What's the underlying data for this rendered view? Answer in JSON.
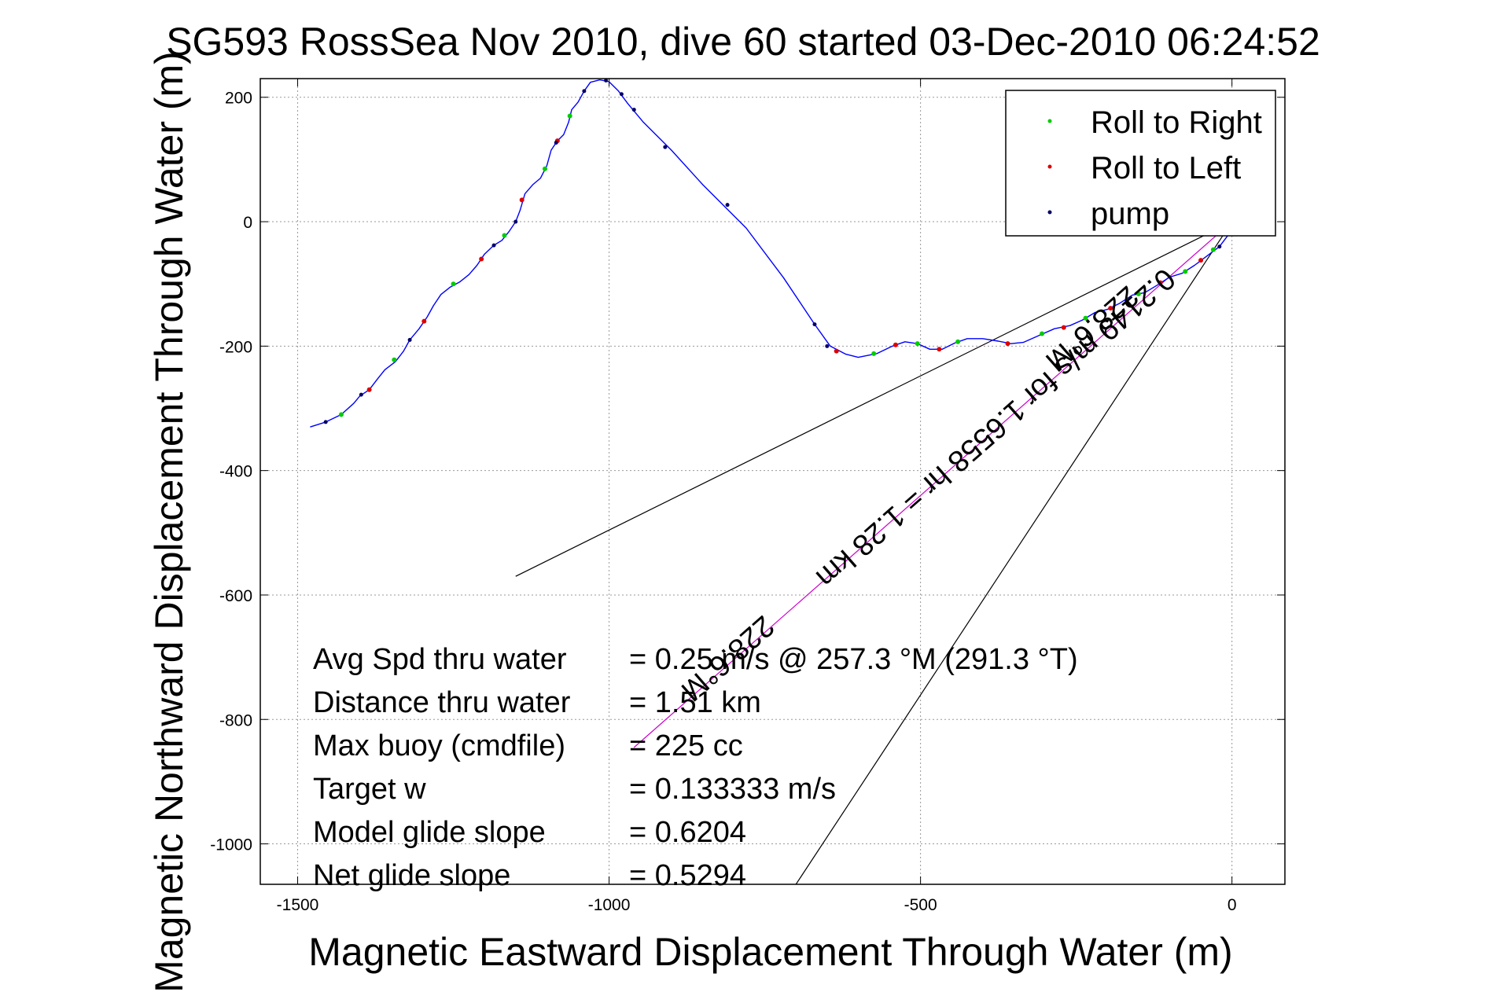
{
  "chart_data": {
    "type": "line",
    "title": "SG593 RossSea Nov 2010, dive 60 started 03-Dec-2010 06:24:52",
    "xlabel": "Magnetic Eastward Displacement Through Water (m)",
    "ylabel": "Magnetic Northward Displacement Through Water (m)",
    "xlim": [
      -1560,
      85
    ],
    "ylim": [
      -1065,
      230
    ],
    "xticks": [
      -1500,
      -1000,
      -500,
      0
    ],
    "xtick_labels": [
      "-1500",
      "-1000",
      "-500",
      "0"
    ],
    "yticks": [
      200,
      0,
      -200,
      -400,
      -600,
      -800,
      -1000
    ],
    "ytick_labels": [
      "200",
      "0",
      "-200",
      "-400",
      "-600",
      "-800",
      "-1000"
    ],
    "grid": true,
    "legend_position": "top-right",
    "legend": [
      {
        "name": "Roll to Right",
        "color": "#00cc00"
      },
      {
        "name": "Roll to Left",
        "color": "#dd0000"
      },
      {
        "name": "pump",
        "color": "#000066"
      }
    ],
    "track_color": "#0000ff",
    "track": [
      [
        -1480,
        -330
      ],
      [
        -1455,
        -322
      ],
      [
        -1430,
        -310
      ],
      [
        -1410,
        -292
      ],
      [
        -1400,
        -280
      ],
      [
        -1385,
        -270
      ],
      [
        -1372,
        -253
      ],
      [
        -1360,
        -238
      ],
      [
        -1343,
        -225
      ],
      [
        -1330,
        -208
      ],
      [
        -1320,
        -190
      ],
      [
        -1305,
        -172
      ],
      [
        -1292,
        -153
      ],
      [
        -1282,
        -135
      ],
      [
        -1270,
        -117
      ],
      [
        -1255,
        -105
      ],
      [
        -1240,
        -97
      ],
      [
        -1225,
        -85
      ],
      [
        -1212,
        -70
      ],
      [
        -1200,
        -52
      ],
      [
        -1185,
        -38
      ],
      [
        -1172,
        -30
      ],
      [
        -1160,
        -15
      ],
      [
        -1150,
        0
      ],
      [
        -1143,
        18
      ],
      [
        -1135,
        45
      ],
      [
        -1122,
        60
      ],
      [
        -1110,
        70
      ],
      [
        -1100,
        90
      ],
      [
        -1093,
        115
      ],
      [
        -1083,
        130
      ],
      [
        -1073,
        140
      ],
      [
        -1065,
        160
      ],
      [
        -1060,
        180
      ],
      [
        -1050,
        192
      ],
      [
        -1040,
        210
      ],
      [
        -1030,
        224
      ],
      [
        -1015,
        228
      ],
      [
        -1000,
        225
      ],
      [
        -985,
        210
      ],
      [
        -970,
        190
      ],
      [
        -945,
        160
      ],
      [
        -900,
        115
      ],
      [
        -850,
        60
      ],
      [
        -780,
        -10
      ],
      [
        -720,
        -90
      ],
      [
        -670,
        -165
      ],
      [
        -645,
        -200
      ],
      [
        -620,
        -213
      ],
      [
        -600,
        -218
      ],
      [
        -570,
        -212
      ],
      [
        -545,
        -200
      ],
      [
        -525,
        -193
      ],
      [
        -505,
        -196
      ],
      [
        -485,
        -205
      ],
      [
        -465,
        -205
      ],
      [
        -445,
        -195
      ],
      [
        -425,
        -188
      ],
      [
        -400,
        -188
      ],
      [
        -375,
        -192
      ],
      [
        -355,
        -196
      ],
      [
        -335,
        -194
      ],
      [
        -310,
        -183
      ],
      [
        -285,
        -172
      ],
      [
        -260,
        -167
      ],
      [
        -240,
        -158
      ],
      [
        -220,
        -146
      ],
      [
        -200,
        -141
      ],
      [
        -180,
        -131
      ],
      [
        -160,
        -118
      ],
      [
        -140,
        -114
      ],
      [
        -120,
        -102
      ],
      [
        -100,
        -89
      ],
      [
        -80,
        -83
      ],
      [
        -60,
        -70
      ],
      [
        -40,
        -55
      ],
      [
        -20,
        -40
      ],
      [
        -5,
        -20
      ],
      [
        0,
        0
      ]
    ],
    "roll_right": [
      [
        -1430,
        -310
      ],
      [
        -1345,
        -222
      ],
      [
        -1250,
        -100
      ],
      [
        -1168,
        -22
      ],
      [
        -1103,
        85
      ],
      [
        -1063,
        170
      ],
      [
        -575,
        -212
      ],
      [
        -505,
        -196
      ],
      [
        -440,
        -193
      ],
      [
        -305,
        -180
      ],
      [
        -235,
        -155
      ],
      [
        -150,
        -116
      ],
      [
        -75,
        -80
      ],
      [
        -30,
        -45
      ]
    ],
    "roll_left": [
      [
        -1385,
        -270
      ],
      [
        -1297,
        -160
      ],
      [
        -1205,
        -60
      ],
      [
        -1140,
        35
      ],
      [
        -1083,
        130
      ],
      [
        -635,
        -208
      ],
      [
        -540,
        -198
      ],
      [
        -470,
        -205
      ],
      [
        -360,
        -196
      ],
      [
        -270,
        -170
      ],
      [
        -195,
        -139
      ],
      [
        -115,
        -98
      ],
      [
        -50,
        -62
      ]
    ],
    "pump": [
      [
        -1455,
        -322
      ],
      [
        -1398,
        -278
      ],
      [
        -1320,
        -190
      ],
      [
        -1185,
        -38
      ],
      [
        -1150,
        0
      ],
      [
        -1085,
        127
      ],
      [
        -1040,
        210
      ],
      [
        -1005,
        227
      ],
      [
        -980,
        205
      ],
      [
        -960,
        180
      ],
      [
        -910,
        120
      ],
      [
        -810,
        27
      ],
      [
        -670,
        -165
      ],
      [
        -650,
        -200
      ],
      [
        -20,
        -40
      ]
    ],
    "wedge_lines": [
      {
        "from": [
          -1150,
          -570
        ],
        "to": [
          0,
          0
        ],
        "color": "#000000"
      },
      {
        "from": [
          -700,
          -1065
        ],
        "to": [
          0,
          0
        ],
        "color": "#000000"
      },
      {
        "from": [
          -960,
          -845
        ],
        "to": [
          0,
          0
        ],
        "color": "#cc00cc"
      }
    ],
    "annotations": [
      {
        "text": "0.2149 m/s for 1.6558 hr = 1.28 km",
        "x": -390,
        "y": -320
      },
      {
        "text": "228.6°M",
        "x": -235,
        "y": -160
      },
      {
        "text": "228.6°M",
        "x": -820,
        "y": -690
      }
    ],
    "stats": [
      {
        "label": "Avg Spd thru water",
        "value": "=  0.25 m/s @ 257.3 °M (291.3 °T)"
      },
      {
        "label": "Distance thru water",
        "value": "=  1.51 km"
      },
      {
        "label": "Max buoy (cmdfile)",
        "value": "= 225 cc"
      },
      {
        "label": "Target w",
        "value": "= 0.133333 m/s"
      },
      {
        "label": "Model glide slope",
        "value": "= 0.6204"
      },
      {
        "label": "Net glide slope",
        "value": "= 0.5294"
      }
    ]
  }
}
